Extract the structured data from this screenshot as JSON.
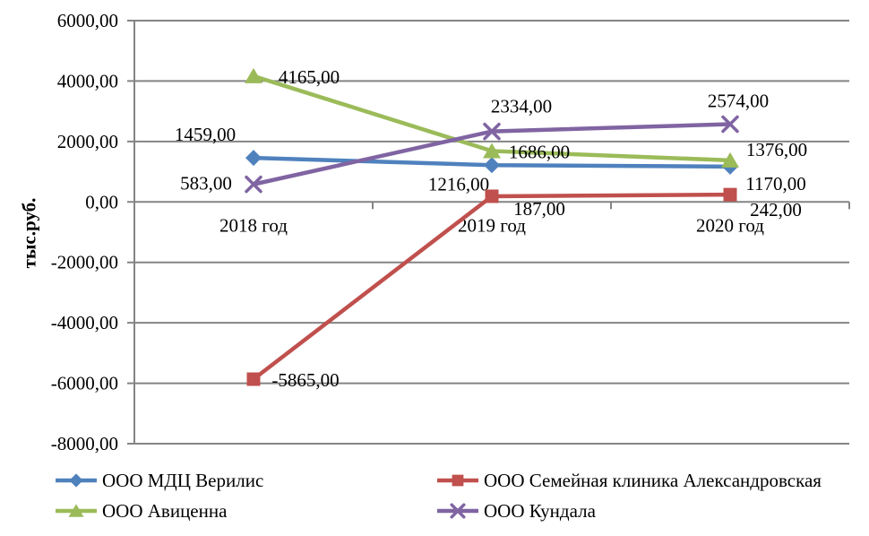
{
  "chart_data": {
    "type": "line",
    "title": "",
    "ylabel": "тыс.руб.",
    "categories": [
      "2018 год",
      "2019 год",
      "2020 год"
    ],
    "series": [
      {
        "name": "ООО МДЦ Верилис",
        "color": "#4F81BD",
        "marker": "diamond",
        "values": [
          1459,
          1216,
          1170
        ],
        "labels": [
          "1459,00",
          "1216,00",
          "1170,00"
        ]
      },
      {
        "name": "ООО Семейная клиника Александровская",
        "color": "#C0504D",
        "marker": "square",
        "values": [
          -5865,
          187,
          242
        ],
        "labels": [
          "-5865,00",
          "187,00",
          "242,00"
        ]
      },
      {
        "name": "ООО Авиценна",
        "color": "#9BBB59",
        "marker": "triangle",
        "values": [
          4165,
          1686,
          1376
        ],
        "labels": [
          "4165,00",
          "1686,00",
          "1376,00"
        ]
      },
      {
        "name": "ООО Кундала",
        "color": "#8064A2",
        "marker": "x",
        "values": [
          583,
          2334,
          2574
        ],
        "labels": [
          "583,00",
          "2334,00",
          "2574,00"
        ]
      }
    ],
    "y_axis": {
      "min": -8000,
      "max": 6000,
      "step": 2000,
      "tick_labels": [
        "6000,00",
        "4000,00",
        "2000,00",
        "0,00",
        "-2000,00",
        "-4000,00",
        "-6000,00",
        "-8000,00"
      ]
    },
    "grid": true,
    "legend_position": "bottom",
    "axis_color": "#848484",
    "text_color": "#000000"
  }
}
